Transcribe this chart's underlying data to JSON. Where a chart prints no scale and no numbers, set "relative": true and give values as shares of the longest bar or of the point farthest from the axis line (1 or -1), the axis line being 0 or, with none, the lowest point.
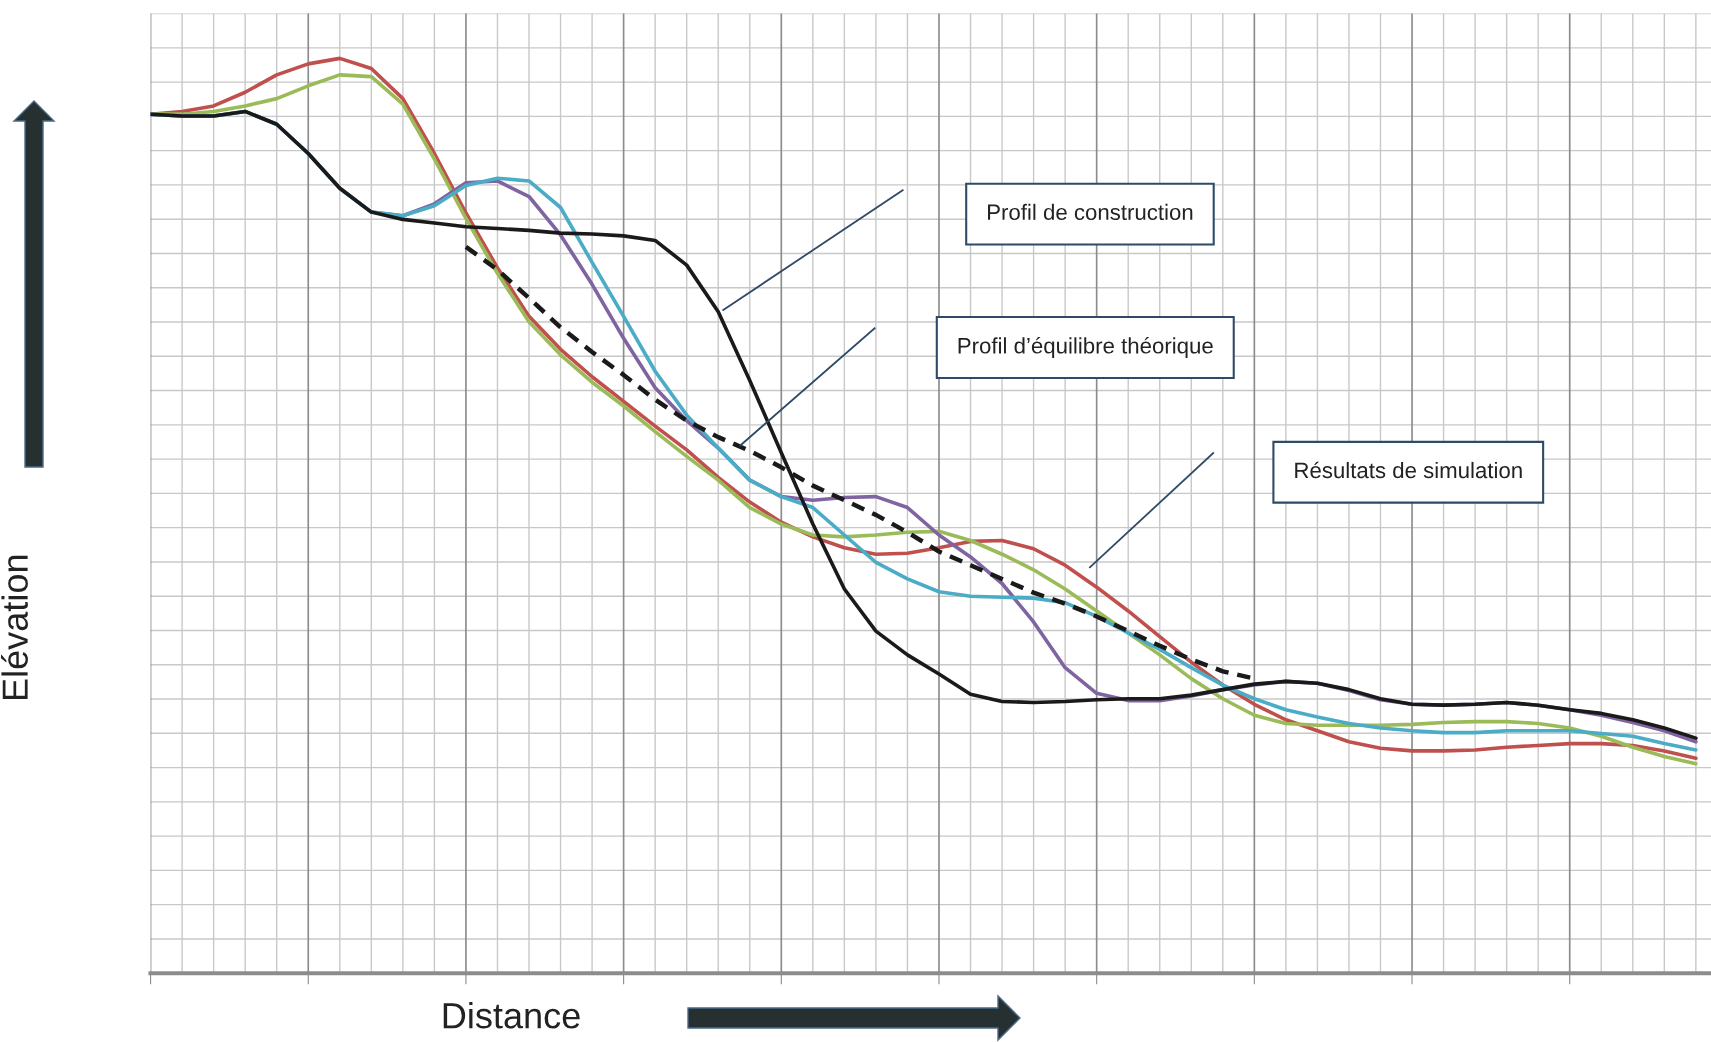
{
  "chart_data": {
    "type": "line",
    "relative": true,
    "grid": true,
    "tick_labels": false,
    "xlabel": "Distance",
    "ylabel": "Elévation",
    "categories": [
      null,
      null,
      null,
      null,
      null,
      null,
      null,
      null,
      null,
      null,
      null,
      null,
      null,
      null,
      null,
      null,
      null,
      null,
      null,
      null,
      null,
      null,
      null,
      null,
      null,
      null,
      null,
      null,
      null,
      null,
      null,
      null,
      null,
      null,
      null,
      null,
      null,
      null,
      null,
      null,
      null,
      null,
      null,
      null,
      null,
      null,
      null,
      null,
      null,
      null
    ],
    "annotations": [
      "Profil de construction",
      "Profil d’équilibre théorique",
      "Résultats de simulation"
    ],
    "series": [
      {
        "color": "#c0504d",
        "line_style": "solid",
        "values": [
          0.939,
          0.942,
          0.948,
          0.963,
          0.982,
          0.994,
          1.0,
          0.989,
          0.956,
          0.896,
          0.831,
          0.771,
          0.718,
          0.682,
          0.652,
          0.625,
          0.598,
          0.572,
          0.542,
          0.515,
          0.493,
          0.477,
          0.465,
          0.458,
          0.459,
          0.465,
          0.472,
          0.473,
          0.464,
          0.446,
          0.422,
          0.396,
          0.368,
          0.34,
          0.315,
          0.294,
          0.277,
          0.265,
          0.253,
          0.246,
          0.243,
          0.243,
          0.244,
          0.247,
          0.249,
          0.251,
          0.251,
          0.249,
          0.243,
          0.235
        ]
      },
      {
        "color": "#9bbb59",
        "line_style": "solid",
        "values": [
          0.939,
          0.939,
          0.942,
          0.948,
          0.956,
          0.97,
          0.982,
          0.98,
          0.95,
          0.89,
          0.825,
          0.765,
          0.712,
          0.676,
          0.646,
          0.62,
          0.592,
          0.565,
          0.539,
          0.509,
          0.491,
          0.479,
          0.477,
          0.479,
          0.482,
          0.483,
          0.473,
          0.458,
          0.441,
          0.42,
          0.396,
          0.372,
          0.348,
          0.322,
          0.3,
          0.282,
          0.273,
          0.271,
          0.271,
          0.271,
          0.272,
          0.274,
          0.275,
          0.275,
          0.273,
          0.268,
          0.259,
          0.247,
          0.237,
          0.229
        ]
      },
      {
        "color": "#8064a2",
        "line_style": "solid",
        "values": [
          0.939,
          0.937,
          0.937,
          0.942,
          0.928,
          0.896,
          0.858,
          0.832,
          0.828,
          0.841,
          0.864,
          0.866,
          0.849,
          0.807,
          0.753,
          0.694,
          0.64,
          0.604,
          0.574,
          0.539,
          0.521,
          0.517,
          0.52,
          0.521,
          0.509,
          0.479,
          0.455,
          0.426,
          0.384,
          0.334,
          0.306,
          0.298,
          0.298,
          0.303,
          0.31,
          0.315,
          0.319,
          0.317,
          0.309,
          0.299,
          0.294,
          0.293,
          0.294,
          0.296,
          0.293,
          0.288,
          0.282,
          0.274,
          0.265,
          0.253
        ]
      },
      {
        "color": "#4bacc6",
        "line_style": "solid",
        "values": [
          0.939,
          0.937,
          0.937,
          0.942,
          0.928,
          0.896,
          0.858,
          0.832,
          0.828,
          0.839,
          0.861,
          0.869,
          0.866,
          0.837,
          0.777,
          0.718,
          0.658,
          0.61,
          0.574,
          0.539,
          0.521,
          0.509,
          0.479,
          0.449,
          0.431,
          0.417,
          0.412,
          0.411,
          0.41,
          0.405,
          0.39,
          0.372,
          0.354,
          0.334,
          0.315,
          0.3,
          0.288,
          0.28,
          0.273,
          0.268,
          0.265,
          0.263,
          0.263,
          0.265,
          0.265,
          0.265,
          0.262,
          0.259,
          0.251,
          0.244
        ]
      },
      {
        "color": "#1a1a1a",
        "line_style": "solid",
        "values": [
          0.939,
          0.937,
          0.937,
          0.942,
          0.928,
          0.896,
          0.858,
          0.832,
          0.824,
          0.82,
          0.816,
          0.814,
          0.812,
          0.809,
          0.808,
          0.806,
          0.801,
          0.774,
          0.723,
          0.648,
          0.569,
          0.491,
          0.42,
          0.374,
          0.348,
          0.327,
          0.305,
          0.297,
          0.296,
          0.297,
          0.299,
          0.3,
          0.3,
          0.304,
          0.31,
          0.316,
          0.319,
          0.317,
          0.31,
          0.3,
          0.294,
          0.293,
          0.294,
          0.296,
          0.293,
          0.288,
          0.284,
          0.277,
          0.268,
          0.257
        ]
      },
      {
        "color": "#1a1a1a",
        "line_style": "dashed",
        "values": [
          null,
          null,
          null,
          null,
          null,
          null,
          null,
          null,
          null,
          null,
          0.794,
          0.769,
          0.738,
          0.706,
          0.679,
          0.654,
          0.627,
          0.604,
          0.586,
          0.571,
          0.553,
          0.533,
          0.517,
          0.501,
          0.482,
          0.461,
          0.446,
          0.431,
          0.416,
          0.404,
          0.39,
          0.374,
          0.358,
          0.343,
          0.33,
          0.322,
          null,
          null,
          null,
          null,
          null,
          null,
          null,
          null,
          null,
          null,
          null,
          null,
          null,
          null
        ]
      }
    ]
  }
}
